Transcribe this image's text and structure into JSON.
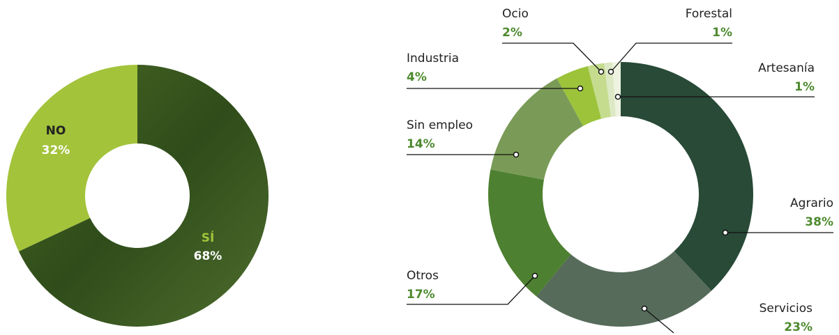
{
  "chart_data": [
    {
      "type": "donut",
      "categories": [
        "SÍ",
        "NO"
      ],
      "values": [
        68,
        32
      ],
      "value_labels": [
        "68%",
        "32%"
      ],
      "colors": [
        "#3d5a1f",
        "#a3c33b"
      ]
    },
    {
      "type": "donut",
      "categories": [
        "Agrario",
        "Servicios",
        "Otros",
        "Sin empleo",
        "Industria",
        "Ocio",
        "Forestal",
        "Artesanía"
      ],
      "values": [
        38,
        23,
        17,
        14,
        4,
        2,
        1,
        1
      ],
      "value_labels": [
        "38%",
        "23%",
        "17%",
        "14%",
        "4%",
        "2%",
        "1%",
        "1%"
      ],
      "colors": [
        "#284a37",
        "#566b5a",
        "#4d8030",
        "#7a9b57",
        "#9cc33a",
        "#c5dc8f",
        "#dde9c4",
        "#eef2e0"
      ]
    }
  ]
}
